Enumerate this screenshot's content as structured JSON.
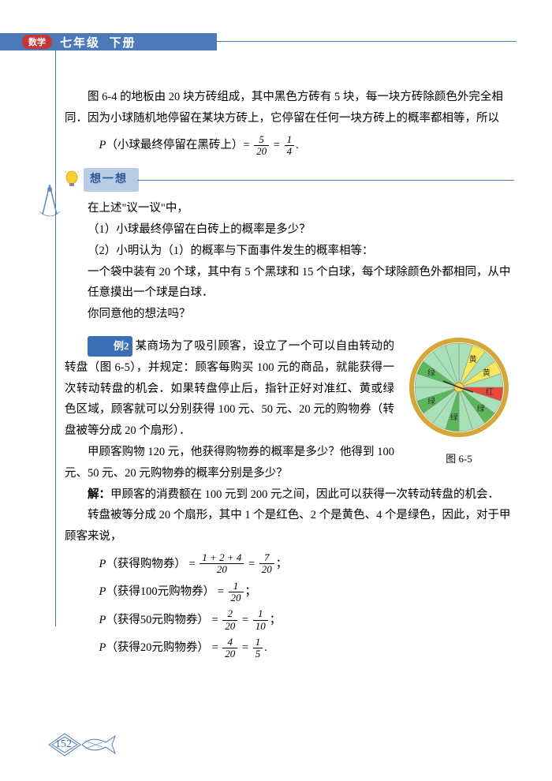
{
  "header": {
    "badge": "数学",
    "grade": "七年级",
    "volume": "下册"
  },
  "intro": {
    "p1": "图 6-4 的地板由 20 块方砖组成，其中黑色方砖有 5 块，每一块方砖除颜色外完全相同．因为小球随机地停留在某块方砖上，它停留在任何一块方砖上的概率都相等，所以",
    "formula_lhs": "P",
    "formula_event": "（小球最终停留在黑砖上）",
    "frac1_num": "5",
    "frac1_den": "20",
    "frac2_num": "1",
    "frac2_den": "4"
  },
  "think": {
    "title": "想一想",
    "line1": "在上述\"议一议\"中，",
    "q1": "（1）小球最终停留在白砖上的概率是多少？",
    "q2": "（2）小明认为（1）的概率与下面事件发生的概率相等：",
    "desc": "一个袋中装有 20 个球，其中有 5 个黑球和 15 个白球，每个球除颜色外都相同，从中任意摸出一个球是白球．",
    "ask": "你同意他的想法吗？"
  },
  "ex2": {
    "label": "例2",
    "p1": "某商场为了吸引顾客，设立了一个可以自由转动的转盘（图 6-5），并规定：顾客每购买 100 元的商品，就能获得一次转动转盘的机会．如果转盘停止后，指针正好对准红、黄或绿色区域，顾客就可以分别获得 100 元、50 元、20 元的购物券（转盘被等分成 20 个扇形）．",
    "p2": "甲顾客购物 120 元，他获得购物券的概率是多少？他得到 100 元、50 元、20 元购物券的概率分别是多少？",
    "figcap": "图 6-5",
    "sol_label": "解：",
    "sol_p1": "甲顾客的消费额在 100 元到 200 元之间，因此可以获得一次转动转盘的机会．",
    "sol_p2": "转盘被等分成 20 个扇形，其中 1 个是红色、2 个是黄色、4 个是绿色，因此，对于甲顾客来说，",
    "f1_ev": "（获得购物券）",
    "f1_n1": "1 + 2 + 4",
    "f1_d1": "20",
    "f1_n2": "7",
    "f1_d2": "20",
    "f2_ev": "（获得100元购物券）",
    "f2_n": "1",
    "f2_d": "20",
    "f3_ev": "（获得50元购物券）",
    "f3_n1": "2",
    "f3_d1": "20",
    "f3_n2": "1",
    "f3_d2": "10",
    "f4_ev": "（获得20元购物券）",
    "f4_n1": "4",
    "f4_d1": "20",
    "f4_n2": "1",
    "f4_d2": "5"
  },
  "wheel": {
    "sectors": [
      {
        "color": "#a8e0b8",
        "label": ""
      },
      {
        "color": "#f5e85a",
        "label": "黄"
      },
      {
        "color": "#a8e0b8",
        "label": ""
      },
      {
        "color": "#f5e85a",
        "label": "黄"
      },
      {
        "color": "#a8e0b8",
        "label": ""
      },
      {
        "color": "#e84a3a",
        "label": "红"
      },
      {
        "color": "#a8e0b8",
        "label": ""
      },
      {
        "color": "#5ab85a",
        "label": "绿"
      },
      {
        "color": "#a8e0b8",
        "label": ""
      },
      {
        "color": "#a8e0b8",
        "label": ""
      },
      {
        "color": "#5ab85a",
        "label": "绿"
      },
      {
        "color": "#a8e0b8",
        "label": ""
      },
      {
        "color": "#a8e0b8",
        "label": ""
      },
      {
        "color": "#5ab85a",
        "label": "绿"
      },
      {
        "color": "#a8e0b8",
        "label": ""
      },
      {
        "color": "#a8e0b8",
        "label": ""
      },
      {
        "color": "#5ab85a",
        "label": "绿"
      },
      {
        "color": "#a8e0b8",
        "label": ""
      },
      {
        "color": "#a8e0b8",
        "label": ""
      },
      {
        "color": "#a8e0b8",
        "label": ""
      }
    ],
    "border": "#d4a838",
    "center": "#f5d858"
  },
  "page": "152",
  "colors": {
    "primary": "#4c7ab8",
    "badge": "#c43838",
    "section_bg": "#b8cce4"
  }
}
